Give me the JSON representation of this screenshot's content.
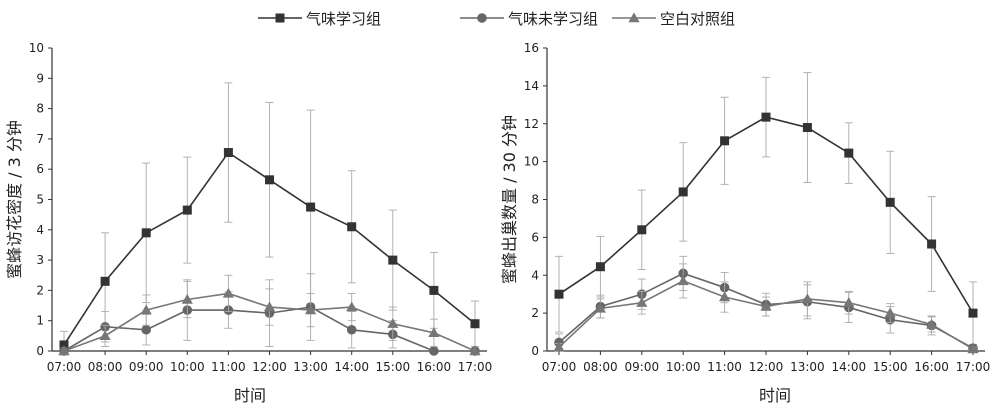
{
  "legend": {
    "items": [
      {
        "label": "气味学习组",
        "marker": "square",
        "color": "#333333"
      },
      {
        "label": "气味未学习组",
        "marker": "circle",
        "color": "#666666"
      },
      {
        "label": "空白对照组",
        "marker": "triangle",
        "color": "#777777"
      }
    ]
  },
  "chart_data": [
    {
      "type": "line",
      "xlabel": "时间",
      "ylabel": "蜜蜂访花密度 / 3 分钟",
      "categories": [
        "07:00",
        "08:00",
        "09:00",
        "10:00",
        "11:00",
        "12:00",
        "13:00",
        "14:00",
        "15:00",
        "16:00",
        "17:00"
      ],
      "ylim": [
        0,
        10
      ],
      "yticks": [
        0,
        1,
        2,
        3,
        4,
        5,
        6,
        7,
        8,
        9,
        10
      ],
      "series": [
        {
          "name": "气味学习组",
          "marker": "square",
          "color": "#333333",
          "values": [
            0.2,
            2.3,
            3.9,
            4.65,
            6.55,
            5.65,
            4.75,
            4.1,
            3.0,
            2.0,
            0.9
          ],
          "err": [
            0.45,
            1.6,
            2.3,
            1.75,
            2.3,
            2.55,
            3.2,
            1.85,
            1.65,
            1.25,
            0.75
          ]
        },
        {
          "name": "气味未学习组",
          "marker": "circle",
          "color": "#666666",
          "values": [
            0.0,
            0.8,
            0.7,
            1.35,
            1.35,
            1.25,
            1.45,
            0.7,
            0.55,
            0.0,
            0.0
          ],
          "err": [
            0.0,
            0.5,
            0.5,
            1.0,
            0.6,
            1.1,
            1.1,
            0.6,
            0.45,
            0.0,
            0.0
          ]
        },
        {
          "name": "空白对照组",
          "marker": "triangle",
          "color": "#777777",
          "values": [
            0.0,
            0.5,
            1.35,
            1.7,
            1.9,
            1.45,
            1.35,
            1.45,
            0.9,
            0.6,
            0.0
          ],
          "err": [
            0.0,
            0.35,
            0.5,
            0.6,
            0.6,
            0.6,
            0.55,
            0.45,
            0.55,
            0.45,
            0.0
          ]
        }
      ]
    },
    {
      "type": "line",
      "xlabel": "时间",
      "ylabel": "蜜蜂出巢数量 / 30 分钟",
      "categories": [
        "07:00",
        "08:00",
        "09:00",
        "10:00",
        "11:00",
        "12:00",
        "13:00",
        "14:00",
        "15:00",
        "16:00",
        "17:00"
      ],
      "ylim": [
        0,
        16
      ],
      "yticks": [
        0,
        2,
        4,
        6,
        8,
        10,
        12,
        14,
        16
      ],
      "series": [
        {
          "name": "气味学习组",
          "marker": "square",
          "color": "#333333",
          "values": [
            3.0,
            4.45,
            6.4,
            8.4,
            11.1,
            12.35,
            11.8,
            10.45,
            7.85,
            5.65,
            2.0
          ],
          "err": [
            2.0,
            1.6,
            2.1,
            2.6,
            2.3,
            2.1,
            2.9,
            1.6,
            2.7,
            2.5,
            1.65
          ]
        },
        {
          "name": "气味未学习组",
          "marker": "circle",
          "color": "#666666",
          "values": [
            0.45,
            2.35,
            3.0,
            4.1,
            3.35,
            2.45,
            2.6,
            2.3,
            1.65,
            1.35,
            0.15
          ],
          "err": [
            0.45,
            0.6,
            0.8,
            0.9,
            0.8,
            0.6,
            0.9,
            0.8,
            0.7,
            0.5,
            0.15
          ]
        },
        {
          "name": "空白对照组",
          "marker": "triangle",
          "color": "#777777",
          "values": [
            0.2,
            2.25,
            2.55,
            3.7,
            2.85,
            2.35,
            2.75,
            2.55,
            2.0,
            1.4,
            0.1
          ],
          "err": [
            0.2,
            0.5,
            0.6,
            0.9,
            0.8,
            0.5,
            0.9,
            0.6,
            0.5,
            0.4,
            0.1
          ]
        }
      ]
    }
  ]
}
